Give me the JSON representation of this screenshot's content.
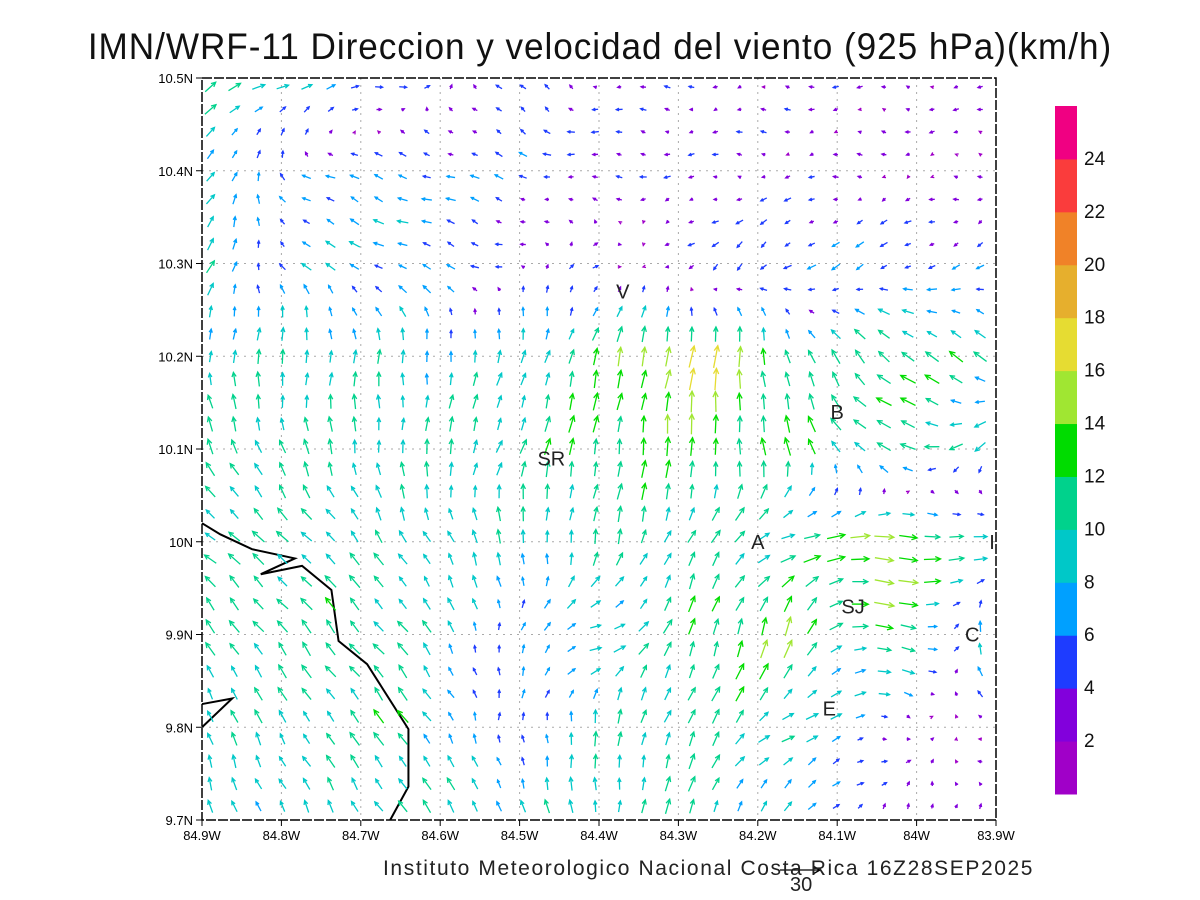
{
  "title": "IMN/WRF-11 Direccion y velocidad del viento (925 hPa)(km/h)",
  "footer": "Instituto Meteorologico Nacional Costa Rica  16Z28SEP2025",
  "reference_vector": {
    "label": "30",
    "value_kmh": 30
  },
  "chart_data": {
    "type": "vector",
    "title": "IMN/WRF-11 Direccion y velocidad del viento (925 hPa)(km/h)",
    "units": "km/h",
    "level": "925 hPa",
    "valid_time": "16Z28SEP2025",
    "xlim": [
      -84.9,
      -83.9
    ],
    "ylim": [
      9.7,
      10.5
    ],
    "grid": true,
    "x_ticks": [
      "84.9W",
      "84.8W",
      "84.7W",
      "84.6W",
      "84.5W",
      "84.4W",
      "84.3W",
      "84.2W",
      "84.1W",
      "84W",
      "83.9W"
    ],
    "y_ticks": [
      "10.5N",
      "10.4N",
      "10.3N",
      "10.2N",
      "10.1N",
      "10N",
      "9.9N",
      "9.8N",
      "9.7N"
    ],
    "wind_field_note": "coarse u/v (km/h) grid, rows from 10.5N to 9.7N, columns from 84.9W to 83.9W",
    "field_lons": [
      -84.9,
      -84.775,
      -84.65,
      -84.525,
      -84.4,
      -84.275,
      -84.15,
      -84.025,
      -83.9
    ],
    "field_lats": [
      10.5,
      10.4,
      10.3,
      10.2,
      10.1,
      10.0,
      9.9,
      9.8,
      9.7
    ],
    "u": [
      [
        8,
        10,
        6,
        -3,
        -3,
        -3,
        -3,
        -3,
        -3
      ],
      [
        6,
        -5,
        -7,
        -5,
        -5,
        -3,
        -3,
        -2,
        -2
      ],
      [
        6,
        -6,
        -7,
        -4,
        4,
        -4,
        -5,
        -5,
        -4
      ],
      [
        0,
        2,
        0,
        2,
        3,
        3,
        -3,
        -10,
        -8
      ],
      [
        -5,
        -3,
        0,
        4,
        2,
        0,
        -3,
        -12,
        -6
      ],
      [
        -8,
        -8,
        -5,
        -3,
        2,
        5,
        12,
        16,
        10
      ],
      [
        -6,
        -7,
        -7,
        0,
        10,
        3,
        4,
        14,
        -5
      ],
      [
        -3,
        -5,
        -7,
        0,
        0,
        5,
        9,
        3,
        -4
      ],
      [
        -2,
        -4,
        -5,
        -5,
        0,
        3,
        4,
        2,
        0
      ]
    ],
    "v": [
      [
        6,
        3,
        0,
        4,
        1,
        0,
        0,
        0,
        0
      ],
      [
        8,
        3,
        2,
        2,
        0,
        0,
        0,
        0,
        0
      ],
      [
        8,
        4,
        3,
        1,
        2,
        -4,
        -4,
        -3,
        -2
      ],
      [
        9,
        10,
        9,
        8,
        12,
        17,
        10,
        8,
        6
      ],
      [
        10,
        10,
        10,
        10,
        12,
        13,
        12,
        4,
        -8
      ],
      [
        6,
        7,
        8,
        9,
        10,
        9,
        3,
        -1,
        0
      ],
      [
        9,
        9,
        8,
        6,
        2,
        12,
        14,
        -6,
        12
      ],
      [
        9,
        8,
        9,
        4,
        10,
        10,
        4,
        0,
        0
      ],
      [
        8,
        8,
        8,
        9,
        9,
        10,
        5,
        3,
        5
      ]
    ],
    "colorbar": {
      "labels": [
        "24",
        "22",
        "20",
        "18",
        "16",
        "14",
        "12",
        "10",
        "8",
        "6",
        "4",
        "2"
      ],
      "bins": [
        0,
        2,
        4,
        6,
        8,
        10,
        12,
        14,
        16,
        18,
        20,
        22,
        24,
        26
      ],
      "colors": [
        "#a000c8",
        "#8200dc",
        "#1e3cff",
        "#00a0ff",
        "#00c8c8",
        "#00d28c",
        "#00dc00",
        "#a0e632",
        "#e6dc32",
        "#e6af2d",
        "#f08228",
        "#fa3c3c",
        "#f00082"
      ]
    },
    "places": [
      {
        "label": "V",
        "lon": -84.37,
        "lat": 10.27
      },
      {
        "label": "SR",
        "lon": -84.46,
        "lat": 10.09
      },
      {
        "label": "B",
        "lon": -84.1,
        "lat": 10.14
      },
      {
        "label": "A",
        "lon": -84.2,
        "lat": 10.0
      },
      {
        "label": "SJ",
        "lon": -84.08,
        "lat": 9.93
      },
      {
        "label": "C",
        "lon": -83.93,
        "lat": 9.9
      },
      {
        "label": "E",
        "lon": -84.11,
        "lat": 9.82
      },
      {
        "label": "I",
        "lon": -83.905,
        "lat": 10.0
      }
    ],
    "coastline": [
      [
        [
          -84.9,
          10.02
        ],
        [
          -84.877,
          10.008
        ],
        [
          -84.837,
          9.992
        ],
        [
          -84.783,
          9.982
        ],
        [
          -84.826,
          9.965
        ],
        [
          -84.774,
          9.974
        ],
        [
          -84.737,
          9.948
        ],
        [
          -84.728,
          9.893
        ],
        [
          -84.692,
          9.868
        ],
        [
          -84.64,
          9.798
        ],
        [
          -84.64,
          9.736
        ],
        [
          -84.663,
          9.7
        ]
      ],
      [
        [
          -84.9,
          9.825
        ],
        [
          -84.862,
          9.831
        ],
        [
          -84.9,
          9.8
        ]
      ]
    ]
  }
}
